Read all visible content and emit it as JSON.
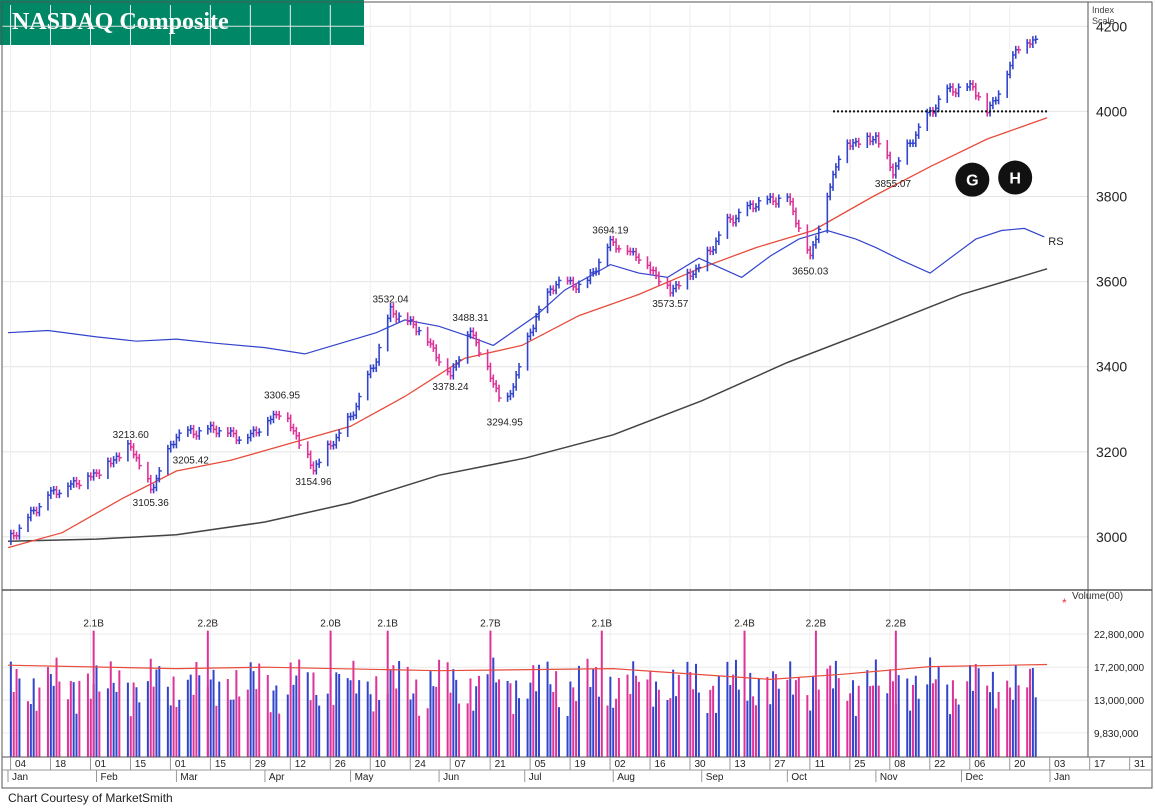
{
  "chart_data": {
    "type": "line",
    "title": "NASDAQ Composite",
    "price_axis_label": "Index\nScale",
    "volume_axis_label": "Volume(00)",
    "rs_label": "RS",
    "credit": "Chart Courtesy of MarketSmith",
    "price_ticks": [
      "3000",
      "3200",
      "3400",
      "3600",
      "3800",
      "4000",
      "4200"
    ],
    "price_ylim": [
      2880,
      4250
    ],
    "volume_ticks": [
      "9,830,000",
      "13,000,000",
      "17,200,000",
      "22,800,000"
    ],
    "volume_scale": "log",
    "x_date_ticks": [
      "04",
      "18",
      "01",
      "15",
      "01",
      "15",
      "29",
      "12",
      "26",
      "10",
      "24",
      "07",
      "21",
      "05",
      "19",
      "02",
      "16",
      "30",
      "13",
      "27",
      "11",
      "25",
      "08",
      "22",
      "06",
      "20",
      "03",
      "17",
      "31"
    ],
    "x_month_labels": [
      "Jan",
      "Feb",
      "Mar",
      "Apr",
      "May",
      "Jun",
      "Jul",
      "Aug",
      "Sep",
      "Oct",
      "Nov",
      "Dec",
      "Jan"
    ],
    "price_annotations": [
      {
        "label": "3213.60",
        "date": "Feb 13",
        "price": 3213.6,
        "pos": "above"
      },
      {
        "label": "3105.36",
        "date": "Feb 20",
        "price": 3105.36,
        "pos": "below"
      },
      {
        "label": "3205.42",
        "date": "Mar 06",
        "price": 3205.42,
        "pos": "below"
      },
      {
        "label": "3306.95",
        "date": "Apr 07",
        "price": 3306.95,
        "pos": "above"
      },
      {
        "label": "3154.96",
        "date": "Apr 18",
        "price": 3154.96,
        "pos": "below"
      },
      {
        "label": "3532.04",
        "date": "May 15",
        "price": 3532.04,
        "pos": "above"
      },
      {
        "label": "3378.24",
        "date": "Jun 05",
        "price": 3378.24,
        "pos": "below"
      },
      {
        "label": "3488.31",
        "date": "Jun 12",
        "price": 3488.31,
        "pos": "above"
      },
      {
        "label": "3294.95",
        "date": "Jun 24",
        "price": 3294.95,
        "pos": "below"
      },
      {
        "label": "3694.19",
        "date": "Jul 31",
        "price": 3694.19,
        "pos": "above"
      },
      {
        "label": "3573.57",
        "date": "Aug 21",
        "price": 3573.57,
        "pos": "below"
      },
      {
        "label": "3650.03",
        "date": "Oct 09",
        "price": 3650.03,
        "pos": "below"
      },
      {
        "label": "3855.07",
        "date": "Nov 07",
        "price": 3855.07,
        "pos": "below"
      }
    ],
    "volume_annotations": [
      {
        "label": "2.1B",
        "date": "Jan 31"
      },
      {
        "label": "2.2B",
        "date": "Mar 12"
      },
      {
        "label": "2.0B",
        "date": "Apr 24"
      },
      {
        "label": "2.1B",
        "date": "May 14"
      },
      {
        "label": "2.7B",
        "date": "Jun 19"
      },
      {
        "label": "2.1B",
        "date": "Jul 28"
      },
      {
        "label": "2.4B",
        "date": "Sep 16"
      },
      {
        "label": "2.2B",
        "date": "Oct 11"
      },
      {
        "label": "2.2B",
        "date": "Nov 08"
      }
    ],
    "markers": [
      {
        "label": "G",
        "date": "Dec 02",
        "price": 3910
      },
      {
        "label": "H",
        "date": "Dec 17",
        "price": 3915
      }
    ],
    "pivot_line": {
      "price": 4000,
      "start": "Oct 17",
      "end": "Dec 31"
    },
    "series": [
      {
        "name": "Price",
        "color": "#3344cc",
        "down_color": "#dd3399",
        "points": [
          [
            "Jan 01",
            2990
          ],
          [
            "Jan 15",
            3100
          ],
          [
            "Feb 01",
            3150
          ],
          [
            "Feb 13",
            3214
          ],
          [
            "Feb 20",
            3110
          ],
          [
            "Mar 01",
            3240
          ],
          [
            "Mar 15",
            3255
          ],
          [
            "Mar 25",
            3230
          ],
          [
            "Apr 07",
            3300
          ],
          [
            "Apr 18",
            3160
          ],
          [
            "May 01",
            3280
          ],
          [
            "May 10",
            3420
          ],
          [
            "May 15",
            3532
          ],
          [
            "May 25",
            3490
          ],
          [
            "Jun 05",
            3380
          ],
          [
            "Jun 12",
            3488
          ],
          [
            "Jun 24",
            3300
          ],
          [
            "Jul 05",
            3520
          ],
          [
            "Jul 12",
            3600
          ],
          [
            "Jul 22",
            3590
          ],
          [
            "Jul 31",
            3694
          ],
          [
            "Aug 10",
            3660
          ],
          [
            "Aug 21",
            3580
          ],
          [
            "Sep 01",
            3640
          ],
          [
            "Sep 10",
            3740
          ],
          [
            "Sep 20",
            3785
          ],
          [
            "Oct 01",
            3800
          ],
          [
            "Oct 09",
            3660
          ],
          [
            "Oct 20",
            3920
          ],
          [
            "Nov 01",
            3940
          ],
          [
            "Nov 07",
            3860
          ],
          [
            "Nov 18",
            3980
          ],
          [
            "Nov 26",
            4050
          ],
          [
            "Dec 05",
            4060
          ],
          [
            "Dec 10",
            4000
          ],
          [
            "Dec 16",
            4070
          ],
          [
            "Dec 20",
            4150
          ],
          [
            "Dec 27",
            4170
          ]
        ]
      },
      {
        "name": "RS",
        "color": "#3344cc",
        "points": [
          [
            "Jan 01",
            3480
          ],
          [
            "Jan 15",
            3485
          ],
          [
            "Feb 01",
            3470
          ],
          [
            "Feb 15",
            3460
          ],
          [
            "Mar 01",
            3465
          ],
          [
            "Mar 15",
            3455
          ],
          [
            "Apr 01",
            3445
          ],
          [
            "Apr 15",
            3430
          ],
          [
            "Apr 25",
            3450
          ],
          [
            "May 10",
            3480
          ],
          [
            "May 20",
            3510
          ],
          [
            "Jun 01",
            3495
          ],
          [
            "Jun 12",
            3470
          ],
          [
            "Jun 20",
            3450
          ],
          [
            "Jul 05",
            3520
          ],
          [
            "Jul 15",
            3580
          ],
          [
            "Jul 31",
            3640
          ],
          [
            "Aug 10",
            3620
          ],
          [
            "Aug 20",
            3610
          ],
          [
            "Aug 31",
            3655
          ],
          [
            "Sep 15",
            3610
          ],
          [
            "Sep 25",
            3660
          ],
          [
            "Oct 05",
            3700
          ],
          [
            "Oct 15",
            3720
          ],
          [
            "Oct 25",
            3700
          ],
          [
            "Nov 01",
            3680
          ],
          [
            "Nov 10",
            3650
          ],
          [
            "Nov 20",
            3620
          ],
          [
            "Nov 30",
            3670
          ],
          [
            "Dec 06",
            3700
          ],
          [
            "Dec 15",
            3720
          ],
          [
            "Dec 23",
            3725
          ],
          [
            "Dec 30",
            3705
          ]
        ]
      },
      {
        "name": "50-day MA",
        "color": "#e74c3c",
        "points": [
          [
            "Jan 01",
            2975
          ],
          [
            "Jan 20",
            3010
          ],
          [
            "Feb 10",
            3090
          ],
          [
            "Mar 01",
            3155
          ],
          [
            "Mar 20",
            3180
          ],
          [
            "Apr 10",
            3220
          ],
          [
            "May 01",
            3260
          ],
          [
            "May 20",
            3330
          ],
          [
            "Jun 10",
            3420
          ],
          [
            "Jun 30",
            3450
          ],
          [
            "Jul 20",
            3520
          ],
          [
            "Aug 10",
            3570
          ],
          [
            "Aug 31",
            3630
          ],
          [
            "Sep 20",
            3680
          ],
          [
            "Oct 10",
            3720
          ],
          [
            "Oct 31",
            3800
          ],
          [
            "Nov 20",
            3870
          ],
          [
            "Dec 10",
            3935
          ],
          [
            "Dec 31",
            3985
          ]
        ]
      },
      {
        "name": "200-day MA",
        "color": "#444444",
        "points": [
          [
            "Jan 01",
            2990
          ],
          [
            "Feb 01",
            2995
          ],
          [
            "Mar 01",
            3005
          ],
          [
            "Apr 01",
            3035
          ],
          [
            "May 01",
            3080
          ],
          [
            "Jun 01",
            3145
          ],
          [
            "Jul 01",
            3185
          ],
          [
            "Aug 01",
            3240
          ],
          [
            "Sep 01",
            3320
          ],
          [
            "Oct 01",
            3410
          ],
          [
            "Nov 01",
            3490
          ],
          [
            "Dec 01",
            3570
          ],
          [
            "Dec 31",
            3630
          ]
        ]
      },
      {
        "name": "Volume MA",
        "color": "#e74c3c",
        "points": [
          [
            "Jan 01",
            17500000
          ],
          [
            "Mar 01",
            17000000
          ],
          [
            "Apr 01",
            17200000
          ],
          [
            "Jun 01",
            16700000
          ],
          [
            "Aug 01",
            17000000
          ],
          [
            "Sep 25",
            15500000
          ],
          [
            "Oct 20",
            16200000
          ],
          [
            "Nov 20",
            17300000
          ],
          [
            "Dec 31",
            17600000
          ]
        ]
      }
    ]
  }
}
